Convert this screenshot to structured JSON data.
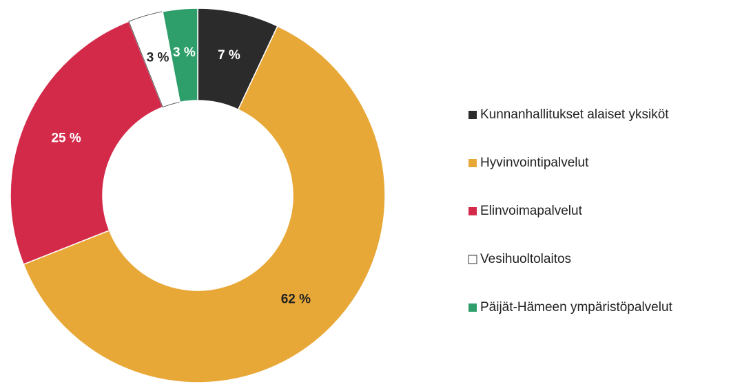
{
  "chart_data": {
    "type": "donut",
    "categories": [
      "Kunnanhallitukset alaiset yksiköt",
      "Hyvinvointipalvelut",
      "Elinvoimapalvelut",
      "Vesihuoltolaitos",
      "Päijät-Hämeen ympäristöpalvelut"
    ],
    "values": [
      7,
      62,
      25,
      3,
      3
    ],
    "value_labels": [
      "7 %",
      "62 %",
      "25 %",
      "3 %",
      "3 %"
    ],
    "colors": [
      "#2b2b2b",
      "#e8a838",
      "#d42a4a",
      "#ffffff",
      "#2e9e6b"
    ]
  }
}
